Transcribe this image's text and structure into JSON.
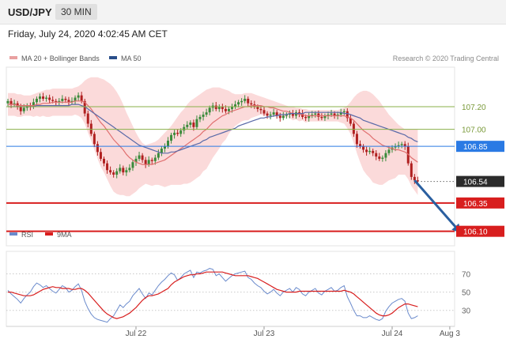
{
  "header": {
    "symbol": "USD/JPY",
    "timeframe": "30 MIN"
  },
  "timestamp": "Friday, July 24, 2020 4:02:45 AM CET",
  "legend": {
    "bb": "MA 20 + Bollinger Bands",
    "ma50": "MA 50",
    "credit": "Research © 2020 Trading Central",
    "rsi": "RSI",
    "rsi_ma": "9MA"
  },
  "colors": {
    "bb_fill": "#fad4d4",
    "ma20": "#e07070",
    "ma50": "#5a6aa8",
    "up": "#3a8a3a",
    "down": "#b02020",
    "resistance": "#8ab04a",
    "pivot": "#2a7ae4",
    "support": "#d81e1e",
    "arrow": "#2a5fa0",
    "rsi_line": "#6a8acc"
  },
  "chart_data": [
    {
      "type": "candlestick",
      "x": {
        "ticks": [
          "Jul 22",
          "Jul 23",
          "Jul 24",
          "Aug 3"
        ],
        "tick_positions_bars": [
          40,
          80,
          120,
          138
        ]
      },
      "ylim": [
        106.0,
        107.5
      ],
      "levels": [
        {
          "value": 107.2,
          "label": "107.20",
          "kind": "resistance"
        },
        {
          "value": 107.0,
          "label": "107.00",
          "kind": "resistance"
        },
        {
          "value": 106.85,
          "label": "106.85",
          "kind": "pivot"
        },
        {
          "value": 106.54,
          "label": "106.54",
          "kind": "last"
        },
        {
          "value": 106.35,
          "label": "106.35",
          "kind": "support"
        },
        {
          "value": 106.1,
          "label": "106.10",
          "kind": "support"
        }
      ],
      "projection": [
        {
          "bar": 127,
          "value": 106.55
        },
        {
          "bar": 141,
          "value": 106.1
        }
      ],
      "close": [
        107.25,
        107.22,
        107.23,
        107.2,
        107.16,
        107.19,
        107.21,
        107.2,
        107.24,
        107.27,
        107.29,
        107.27,
        107.28,
        107.26,
        107.25,
        107.24,
        107.25,
        107.27,
        107.26,
        107.24,
        107.25,
        107.28,
        107.3,
        107.25,
        107.14,
        107.05,
        106.96,
        106.87,
        106.8,
        106.74,
        106.7,
        106.64,
        106.62,
        106.6,
        106.63,
        106.66,
        106.62,
        106.64,
        106.66,
        106.71,
        106.74,
        106.77,
        106.73,
        106.69,
        106.73,
        106.72,
        106.75,
        106.79,
        106.83,
        106.85,
        106.9,
        106.95,
        106.97,
        106.96,
        106.99,
        107.02,
        107.04,
        107.06,
        107.02,
        107.09,
        107.11,
        107.13,
        107.15,
        107.19,
        107.21,
        107.18,
        107.2,
        107.18,
        107.16,
        107.18,
        107.2,
        107.22,
        107.24,
        107.25,
        107.27,
        107.23,
        107.22,
        107.2,
        107.18,
        107.17,
        107.14,
        107.12,
        107.13,
        107.15,
        107.12,
        107.1,
        107.12,
        107.13,
        107.14,
        107.12,
        107.15,
        107.14,
        107.11,
        107.1,
        107.12,
        107.13,
        107.14,
        107.11,
        107.1,
        107.12,
        107.13,
        107.14,
        107.12,
        107.13,
        107.15,
        107.16,
        107.1,
        107.05,
        106.96,
        106.87,
        106.85,
        106.82,
        106.8,
        106.81,
        106.79,
        106.76,
        106.74,
        106.75,
        106.79,
        106.82,
        106.84,
        106.85,
        106.86,
        106.87,
        106.85,
        106.7,
        106.58,
        106.55,
        106.54
      ],
      "ma20": [
        107.22,
        107.22,
        107.22,
        107.21,
        107.21,
        107.21,
        107.21,
        107.21,
        107.21,
        107.22,
        107.22,
        107.23,
        107.23,
        107.23,
        107.24,
        107.24,
        107.24,
        107.24,
        107.24,
        107.24,
        107.24,
        107.25,
        107.25,
        107.25,
        107.24,
        107.21,
        107.18,
        107.14,
        107.1,
        107.06,
        107.03,
        106.99,
        106.95,
        106.91,
        106.88,
        106.85,
        106.82,
        106.78,
        106.75,
        106.73,
        106.71,
        106.7,
        106.69,
        106.69,
        106.69,
        106.69,
        106.7,
        106.71,
        106.72,
        106.73,
        106.75,
        106.77,
        106.79,
        106.81,
        106.83,
        106.85,
        106.87,
        106.89,
        106.91,
        106.93,
        106.95,
        106.98,
        107.0,
        107.03,
        107.06,
        107.08,
        107.1,
        107.12,
        107.13,
        107.15,
        107.16,
        107.17,
        107.18,
        107.19,
        107.2,
        107.2,
        107.21,
        107.21,
        107.21,
        107.21,
        107.2,
        107.2,
        107.19,
        107.19,
        107.18,
        107.17,
        107.16,
        107.16,
        107.15,
        107.14,
        107.14,
        107.13,
        107.13,
        107.12,
        107.12,
        107.12,
        107.12,
        107.12,
        107.12,
        107.12,
        107.12,
        107.12,
        107.12,
        107.12,
        107.12,
        107.12,
        107.11,
        107.1,
        107.08,
        107.05,
        107.02,
        106.99,
        106.97,
        106.95,
        106.92,
        106.9,
        106.88,
        106.86,
        106.85,
        106.84,
        106.83,
        106.82,
        106.82,
        106.81,
        106.8,
        106.78,
        106.75,
        106.73,
        106.71
      ],
      "bb_upper": [
        107.32,
        107.32,
        107.32,
        107.31,
        107.31,
        107.3,
        107.3,
        107.3,
        107.31,
        107.32,
        107.33,
        107.34,
        107.35,
        107.35,
        107.36,
        107.36,
        107.36,
        107.36,
        107.36,
        107.36,
        107.36,
        107.37,
        107.38,
        107.4,
        107.43,
        107.45,
        107.46,
        107.46,
        107.46,
        107.45,
        107.44,
        107.42,
        107.4,
        107.37,
        107.33,
        107.28,
        107.22,
        107.15,
        107.09,
        107.03,
        106.97,
        106.92,
        106.88,
        106.86,
        106.87,
        106.88,
        106.89,
        106.91,
        106.94,
        106.97,
        107.0,
        107.03,
        107.07,
        107.11,
        107.15,
        107.18,
        107.22,
        107.25,
        107.27,
        107.29,
        107.31,
        107.33,
        107.35,
        107.36,
        107.37,
        107.37,
        107.37,
        107.36,
        107.35,
        107.34,
        107.32,
        107.31,
        107.31,
        107.31,
        107.32,
        107.32,
        107.32,
        107.31,
        107.3,
        107.29,
        107.28,
        107.27,
        107.26,
        107.25,
        107.24,
        107.23,
        107.22,
        107.21,
        107.2,
        107.2,
        107.19,
        107.19,
        107.18,
        107.18,
        107.17,
        107.17,
        107.17,
        107.17,
        107.17,
        107.17,
        107.17,
        107.17,
        107.17,
        107.17,
        107.18,
        107.19,
        107.21,
        107.24,
        107.28,
        107.31,
        107.33,
        107.34,
        107.34,
        107.33,
        107.31,
        107.28,
        107.25,
        107.21,
        107.17,
        107.13,
        107.1,
        107.07,
        107.04,
        107.02,
        107.0,
        107.0,
        107.0,
        107.0,
        107.0
      ],
      "bb_lower": [
        107.12,
        107.12,
        107.12,
        107.11,
        107.11,
        107.12,
        107.12,
        107.12,
        107.11,
        107.12,
        107.11,
        107.12,
        107.11,
        107.11,
        107.12,
        107.12,
        107.12,
        107.12,
        107.12,
        107.12,
        107.12,
        107.13,
        107.12,
        107.1,
        107.05,
        106.97,
        106.9,
        106.82,
        106.74,
        106.67,
        106.62,
        106.56,
        106.5,
        106.45,
        106.43,
        106.42,
        106.42,
        106.41,
        106.41,
        106.43,
        106.45,
        106.48,
        106.5,
        106.52,
        106.51,
        106.5,
        106.51,
        106.51,
        106.5,
        106.49,
        106.5,
        106.51,
        106.51,
        106.51,
        106.51,
        106.52,
        106.52,
        106.53,
        106.55,
        106.57,
        106.59,
        106.63,
        106.65,
        106.7,
        106.75,
        106.79,
        106.83,
        106.88,
        106.91,
        106.96,
        107.0,
        107.03,
        107.05,
        107.07,
        107.08,
        107.08,
        107.1,
        107.11,
        107.12,
        107.13,
        107.12,
        107.13,
        107.12,
        107.13,
        107.12,
        107.11,
        107.1,
        107.11,
        107.1,
        107.08,
        107.09,
        107.07,
        107.08,
        107.06,
        107.07,
        107.07,
        107.07,
        107.07,
        107.07,
        107.07,
        107.07,
        107.07,
        107.07,
        107.07,
        107.06,
        107.05,
        107.01,
        106.96,
        106.88,
        106.79,
        106.71,
        106.64,
        106.6,
        106.57,
        106.53,
        106.52,
        106.51,
        106.51,
        106.53,
        106.55,
        106.56,
        106.57,
        106.6,
        106.6,
        106.6,
        106.56,
        106.5,
        106.46,
        106.42
      ],
      "ma50": [
        107.2,
        107.2,
        107.2,
        107.2,
        107.2,
        107.2,
        107.2,
        107.2,
        107.2,
        107.21,
        107.21,
        107.21,
        107.21,
        107.21,
        107.21,
        107.21,
        107.21,
        107.21,
        107.21,
        107.21,
        107.22,
        107.22,
        107.22,
        107.21,
        107.2,
        107.18,
        107.16,
        107.14,
        107.12,
        107.1,
        107.08,
        107.06,
        107.04,
        107.02,
        107.0,
        106.98,
        106.96,
        106.94,
        106.92,
        106.9,
        106.88,
        106.86,
        106.85,
        106.84,
        106.83,
        106.82,
        106.81,
        106.8,
        106.79,
        106.79,
        106.79,
        106.8,
        106.8,
        106.81,
        106.82,
        106.83,
        106.84,
        106.85,
        106.86,
        106.87,
        106.88,
        106.9,
        106.91,
        106.93,
        106.94,
        106.95,
        106.96,
        106.97,
        106.98,
        106.99,
        107.0,
        107.01,
        107.03,
        107.04,
        107.05,
        107.06,
        107.07,
        107.08,
        107.09,
        107.1,
        107.1,
        107.11,
        107.11,
        107.12,
        107.12,
        107.13,
        107.13,
        107.13,
        107.14,
        107.14,
        107.14,
        107.14,
        107.14,
        107.15,
        107.15,
        107.15,
        107.15,
        107.15,
        107.15,
        107.15,
        107.15,
        107.15,
        107.15,
        107.15,
        107.15,
        107.14,
        107.14,
        107.13,
        107.12,
        107.11,
        107.1,
        107.08,
        107.07,
        107.06,
        107.05,
        107.04,
        107.03,
        107.02,
        107.01,
        107.0,
        106.99,
        106.98,
        106.97,
        106.96,
        106.95,
        106.93,
        106.92,
        106.9,
        106.89
      ]
    },
    {
      "type": "line",
      "y_ticks": [
        30,
        50,
        70
      ],
      "ylim": [
        15,
        80
      ],
      "series": [
        {
          "name": "RSI",
          "values": [
            52,
            48,
            45,
            42,
            38,
            43,
            47,
            50,
            56,
            60,
            58,
            55,
            57,
            54,
            51,
            49,
            53,
            57,
            55,
            50,
            52,
            56,
            59,
            52,
            40,
            32,
            26,
            22,
            20,
            19,
            18,
            17,
            21,
            24,
            30,
            36,
            33,
            37,
            40,
            46,
            50,
            54,
            48,
            43,
            49,
            47,
            52,
            57,
            61,
            64,
            68,
            71,
            69,
            63,
            66,
            70,
            72,
            74,
            66,
            72,
            71,
            73,
            74,
            76,
            75,
            68,
            70,
            66,
            62,
            65,
            68,
            70,
            71,
            72,
            73,
            66,
            64,
            60,
            57,
            55,
            51,
            48,
            50,
            53,
            49,
            46,
            50,
            52,
            54,
            50,
            55,
            53,
            48,
            46,
            50,
            52,
            54,
            49,
            47,
            51,
            53,
            55,
            51,
            52,
            55,
            57,
            45,
            38,
            30,
            24,
            24,
            22,
            22,
            24,
            22,
            20,
            19,
            21,
            29,
            34,
            38,
            40,
            42,
            43,
            40,
            27,
            21,
            22,
            24
          ]
        },
        {
          "name": "9MA",
          "values": [
            50,
            50,
            49,
            48,
            47,
            46,
            46,
            46,
            47,
            49,
            51,
            53,
            54,
            55,
            56,
            55,
            55,
            54,
            54,
            54,
            53,
            53,
            54,
            54,
            52,
            49,
            45,
            41,
            37,
            33,
            29,
            26,
            24,
            22,
            21,
            22,
            23,
            25,
            27,
            30,
            33,
            37,
            41,
            44,
            46,
            46,
            47,
            48,
            50,
            52,
            54,
            58,
            61,
            63,
            65,
            67,
            68,
            69,
            69,
            70,
            70,
            71,
            72,
            72,
            72,
            72,
            72,
            72,
            71,
            70,
            69,
            68,
            68,
            68,
            68,
            68,
            67,
            66,
            65,
            63,
            61,
            59,
            57,
            55,
            53,
            52,
            51,
            50,
            50,
            50,
            50,
            51,
            51,
            51,
            51,
            51,
            51,
            51,
            51,
            51,
            51,
            51,
            51,
            51,
            51,
            52,
            51,
            50,
            48,
            45,
            42,
            39,
            36,
            33,
            30,
            27,
            25,
            24,
            24,
            25,
            27,
            30,
            33,
            35,
            37,
            37,
            36,
            35,
            34
          ]
        }
      ]
    }
  ]
}
